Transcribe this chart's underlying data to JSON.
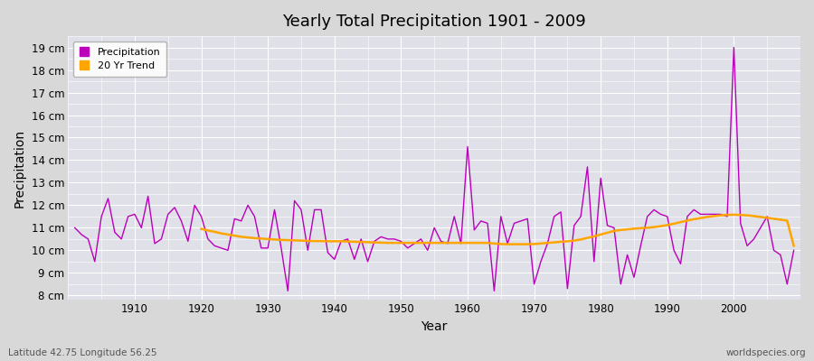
{
  "title": "Yearly Total Precipitation 1901 - 2009",
  "xlabel": "Year",
  "ylabel": "Precipitation",
  "subtitle_left": "Latitude 42.75 Longitude 56.25",
  "subtitle_right": "worldspecies.org",
  "years": [
    1901,
    1902,
    1903,
    1904,
    1905,
    1906,
    1907,
    1908,
    1909,
    1910,
    1911,
    1912,
    1913,
    1914,
    1915,
    1916,
    1917,
    1918,
    1919,
    1920,
    1921,
    1922,
    1923,
    1924,
    1925,
    1926,
    1927,
    1928,
    1929,
    1930,
    1931,
    1932,
    1933,
    1934,
    1935,
    1936,
    1937,
    1938,
    1939,
    1940,
    1941,
    1942,
    1943,
    1944,
    1945,
    1946,
    1947,
    1948,
    1949,
    1950,
    1951,
    1952,
    1953,
    1954,
    1955,
    1956,
    1957,
    1958,
    1959,
    1960,
    1961,
    1962,
    1963,
    1964,
    1965,
    1966,
    1967,
    1968,
    1969,
    1970,
    1971,
    1972,
    1973,
    1974,
    1975,
    1976,
    1977,
    1978,
    1979,
    1980,
    1981,
    1982,
    1983,
    1984,
    1985,
    1986,
    1987,
    1988,
    1989,
    1990,
    1991,
    1992,
    1993,
    1994,
    1995,
    1996,
    1997,
    1998,
    1999,
    2000,
    2001,
    2002,
    2003,
    2004,
    2005,
    2006,
    2007,
    2008,
    2009
  ],
  "precip": [
    11.0,
    10.7,
    10.5,
    9.5,
    11.5,
    12.3,
    10.8,
    10.5,
    11.5,
    11.6,
    11.0,
    12.4,
    10.3,
    10.5,
    11.6,
    11.9,
    11.3,
    10.4,
    12.0,
    11.5,
    10.5,
    10.2,
    10.1,
    10.0,
    11.4,
    11.3,
    12.0,
    11.5,
    10.1,
    10.1,
    11.8,
    10.1,
    8.2,
    12.2,
    11.8,
    10.0,
    11.8,
    11.8,
    9.9,
    9.6,
    10.4,
    10.5,
    9.6,
    10.5,
    9.5,
    10.4,
    10.6,
    10.5,
    10.5,
    10.4,
    10.1,
    10.3,
    10.5,
    10.0,
    11.0,
    10.4,
    10.3,
    11.5,
    10.3,
    14.6,
    10.9,
    11.3,
    11.2,
    8.2,
    11.5,
    10.3,
    11.2,
    11.3,
    11.4,
    8.5,
    9.5,
    10.3,
    11.5,
    11.7,
    8.3,
    11.1,
    11.5,
    13.7,
    9.5,
    13.2,
    11.1,
    11.0,
    8.5,
    9.8,
    8.8,
    10.2,
    11.5,
    11.8,
    11.6,
    11.5,
    10.0,
    9.4,
    11.5,
    11.8,
    11.6,
    11.6,
    11.6,
    11.6,
    11.5,
    19.0,
    11.2,
    10.2,
    10.5,
    11.0,
    11.5,
    10.0,
    9.8,
    8.5,
    10.0
  ],
  "trend_years": [
    1920,
    1921,
    1922,
    1923,
    1924,
    1925,
    1926,
    1927,
    1928,
    1929,
    1930,
    1931,
    1932,
    1933,
    1934,
    1935,
    1936,
    1937,
    1938,
    1939,
    1940,
    1941,
    1942,
    1943,
    1944,
    1945,
    1946,
    1947,
    1948,
    1949,
    1950,
    1951,
    1952,
    1953,
    1954,
    1955,
    1956,
    1957,
    1958,
    1959,
    1960,
    1961,
    1962,
    1963,
    1964,
    1965,
    1966,
    1967,
    1968,
    1969,
    1970,
    1971,
    1972,
    1973,
    1974,
    1975,
    1976,
    1977,
    1978,
    1979,
    1980,
    1981,
    1982,
    1983,
    1984,
    1985,
    1986,
    1987,
    1988,
    1989,
    1990,
    1991,
    1992,
    1993,
    1994,
    1995,
    1996,
    1997,
    1998,
    1999,
    2000,
    2001,
    2002,
    2003,
    2004,
    2005,
    2006,
    2007,
    2008,
    2009
  ],
  "trend": [
    10.95,
    10.88,
    10.82,
    10.75,
    10.7,
    10.65,
    10.6,
    10.57,
    10.54,
    10.52,
    10.5,
    10.48,
    10.46,
    10.45,
    10.44,
    10.43,
    10.42,
    10.41,
    10.41,
    10.4,
    10.4,
    10.4,
    10.39,
    10.38,
    10.37,
    10.36,
    10.35,
    10.34,
    10.33,
    10.33,
    10.33,
    10.33,
    10.33,
    10.33,
    10.33,
    10.33,
    10.33,
    10.33,
    10.33,
    10.33,
    10.33,
    10.33,
    10.33,
    10.33,
    10.3,
    10.28,
    10.27,
    10.27,
    10.27,
    10.27,
    10.28,
    10.3,
    10.33,
    10.35,
    10.38,
    10.4,
    10.43,
    10.48,
    10.55,
    10.62,
    10.7,
    10.78,
    10.86,
    10.9,
    10.93,
    10.96,
    10.98,
    11.0,
    11.03,
    11.07,
    11.12,
    11.18,
    11.25,
    11.32,
    11.38,
    11.43,
    11.48,
    11.52,
    11.55,
    11.57,
    11.58,
    11.57,
    11.55,
    11.52,
    11.48,
    11.44,
    11.4,
    11.36,
    11.32,
    10.2
  ],
  "precip_color": "#bb00bb",
  "trend_color": "#FFA500",
  "fig_bg_color": "#d8d8d8",
  "plot_bg_color": "#e0e0e8",
  "grid_color": "#ffffff",
  "ylim": [
    7.8,
    19.5
  ],
  "yticks": [
    8,
    9,
    10,
    11,
    12,
    13,
    14,
    15,
    16,
    17,
    18,
    19
  ],
  "xlim": [
    1900,
    2010
  ],
  "xticks": [
    1910,
    1920,
    1930,
    1940,
    1950,
    1960,
    1970,
    1980,
    1990,
    2000
  ]
}
